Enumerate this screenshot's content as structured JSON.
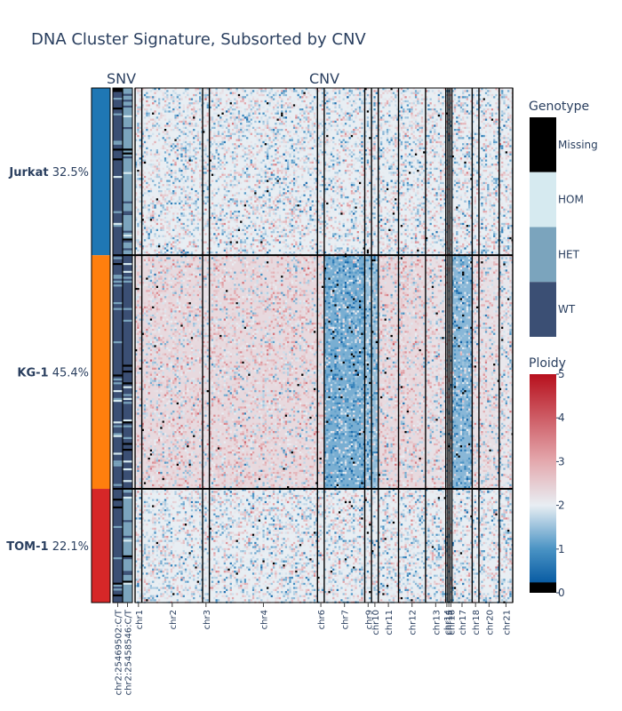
{
  "chart_data": {
    "type": "heatmap",
    "title": "DNA Cluster Signature, Subsorted by CNV",
    "panels": {
      "snv": "SNV",
      "cnv": "CNV"
    },
    "clusters": [
      {
        "name": "Jurkat",
        "percent": "32.5%",
        "fraction": 0.325,
        "color": "#1f77b4"
      },
      {
        "name": "KG-1",
        "percent": "45.4%",
        "fraction": 0.454,
        "color": "#ff7f0e"
      },
      {
        "name": "TOM-1",
        "percent": "22.1%",
        "fraction": 0.221,
        "color": "#d62728"
      }
    ],
    "snv_variants": [
      "chr2:25469502:C/T",
      "chr2:25458546:C/T"
    ],
    "snv_genotype_by_cluster": [
      [
        "WT",
        "HET"
      ],
      [
        "WT",
        "WT"
      ],
      [
        "WT",
        "HET"
      ]
    ],
    "cnv_chromosomes": [
      {
        "name": "chr1",
        "width": 1
      },
      {
        "name": "chr2",
        "width": 9
      },
      {
        "name": "chr3",
        "width": 1
      },
      {
        "name": "chr4",
        "width": 16
      },
      {
        "name": "chr6",
        "width": 1
      },
      {
        "name": "chr7",
        "width": 6
      },
      {
        "name": "chr9",
        "width": 1
      },
      {
        "name": "chr10",
        "width": 1
      },
      {
        "name": "chr11",
        "width": 3
      },
      {
        "name": "chr12",
        "width": 4
      },
      {
        "name": "chr13",
        "width": 3
      },
      {
        "name": "chr14",
        "width": 0.3
      },
      {
        "name": "chr15",
        "width": 0.3
      },
      {
        "name": "chr16",
        "width": 0.3
      },
      {
        "name": "chr17",
        "width": 3
      },
      {
        "name": "chr18",
        "width": 1
      },
      {
        "name": "chr20",
        "width": 3
      },
      {
        "name": "chr21",
        "width": 2
      }
    ],
    "cnv_ploidy_by_cluster": [
      [
        2,
        2,
        2,
        2,
        2,
        2,
        2,
        2,
        2,
        2,
        2,
        2,
        2,
        2,
        2,
        2,
        2,
        2
      ],
      [
        2.3,
        2.3,
        2.2,
        2.3,
        2.3,
        1.3,
        1.5,
        1.5,
        2.3,
        2.3,
        2.2,
        2,
        2,
        2,
        1.4,
        2.2,
        2.2,
        2.1
      ],
      [
        2,
        2,
        2,
        2,
        2,
        2,
        2,
        2,
        2,
        2,
        2,
        2,
        2,
        2,
        2,
        2,
        2,
        2
      ]
    ],
    "genotype_legend": {
      "title": "Genotype",
      "categories": [
        {
          "label": "Missing",
          "color": "#000000"
        },
        {
          "label": "HOM",
          "color": "#d6eaf0"
        },
        {
          "label": "HET",
          "color": "#7ba4bd"
        },
        {
          "label": "WT",
          "color": "#3b4f74"
        }
      ]
    },
    "ploidy_legend": {
      "title": "Ploidy",
      "range": [
        0,
        5
      ],
      "ticks": [
        "5",
        "4",
        "3",
        "2",
        "1",
        "0"
      ]
    }
  }
}
